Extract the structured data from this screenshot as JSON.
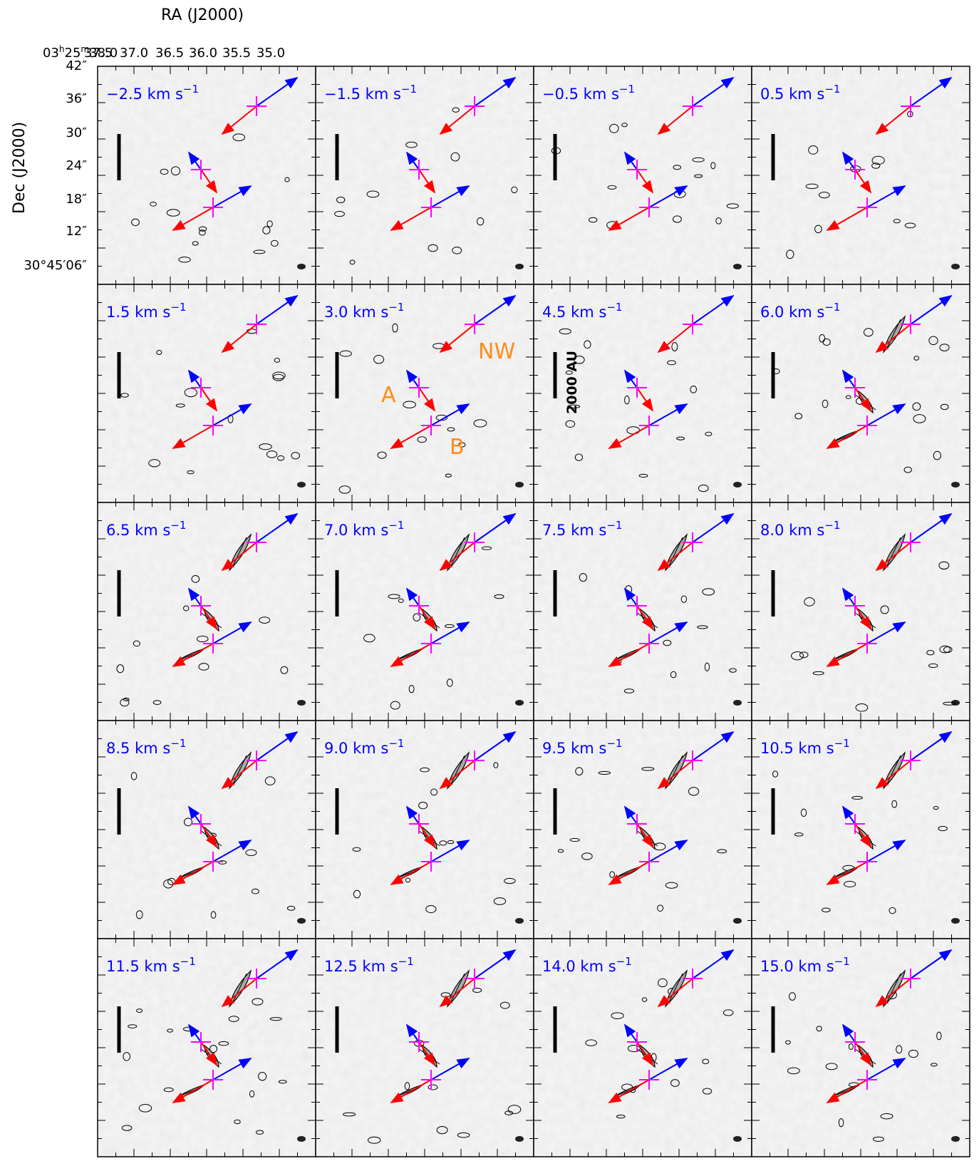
{
  "figure": {
    "ra_label": "RA (J2000)",
    "dec_label": "Dec (J2000)",
    "ra_ticks": [
      "03h25m38s.0",
      "37s.5",
      "37s.0",
      "36s.5",
      "36s.0",
      "35s.5",
      "35s.0"
    ],
    "dec_ticks": [
      "42″",
      "36″",
      "30″",
      "24″",
      "18″",
      "12″",
      "30°45′06″"
    ],
    "scale_bar_label": "2000 AU",
    "source_labels": [
      "A",
      "B",
      "NW"
    ]
  },
  "panels": [
    {
      "velocity": "−2.5"
    },
    {
      "velocity": "−1.5"
    },
    {
      "velocity": "−0.5"
    },
    {
      "velocity": "0.5"
    },
    {
      "velocity": "1.5"
    },
    {
      "velocity": "3.0"
    },
    {
      "velocity": "4.5"
    },
    {
      "velocity": "6.0"
    },
    {
      "velocity": "6.5"
    },
    {
      "velocity": "7.0"
    },
    {
      "velocity": "7.5"
    },
    {
      "velocity": "8.0"
    },
    {
      "velocity": "8.5"
    },
    {
      "velocity": "9.0"
    },
    {
      "velocity": "9.5"
    },
    {
      "velocity": "10.5"
    },
    {
      "velocity": "11.5"
    },
    {
      "velocity": "12.5"
    },
    {
      "velocity": "14.0"
    },
    {
      "velocity": "15.0"
    }
  ],
  "velocity_unit": "km s",
  "velocity_unit_exponent": "−1",
  "colors": {
    "velocity_text": "#0000ff",
    "blue_lobe": "#0000ff",
    "red_lobe": "#ff0000",
    "source_cross": "#ff00ff",
    "source_label": "#ff8c1a"
  }
}
